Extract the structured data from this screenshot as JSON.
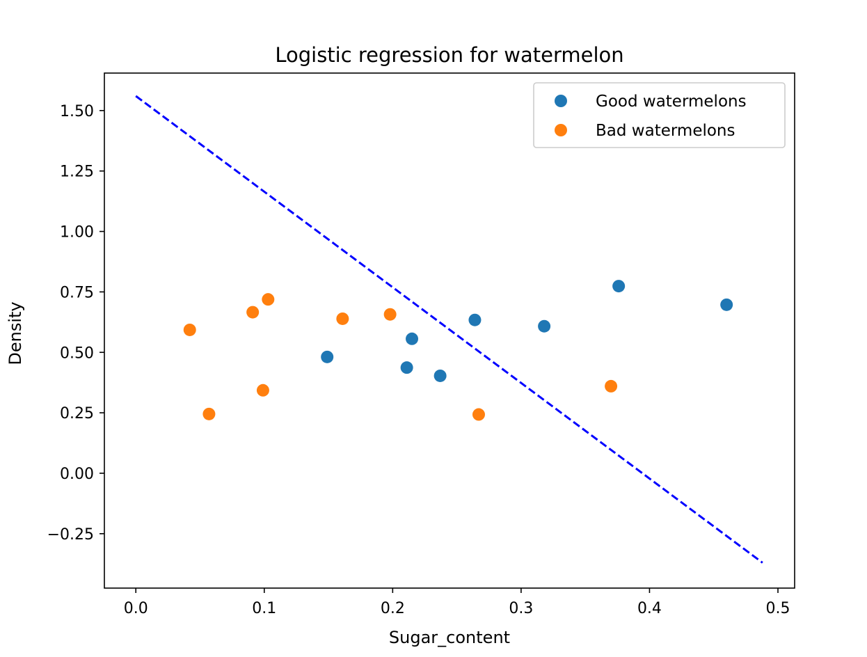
{
  "chart_data": {
    "type": "scatter",
    "title": "Logistic regression for watermelon",
    "xlabel": "Sugar_content",
    "ylabel": "Density",
    "xlim": [
      -0.0245,
      0.513
    ],
    "ylim": [
      -0.475,
      1.655
    ],
    "xticks": [
      0.0,
      0.1,
      0.2,
      0.3,
      0.4,
      0.5
    ],
    "xtick_labels": [
      "0.0",
      "0.1",
      "0.2",
      "0.3",
      "0.4",
      "0.5"
    ],
    "yticks": [
      -0.25,
      0.0,
      0.25,
      0.5,
      0.75,
      1.0,
      1.25,
      1.5
    ],
    "ytick_labels": [
      "−0.25",
      "0.00",
      "0.25",
      "0.50",
      "0.75",
      "1.00",
      "1.25",
      "1.50"
    ],
    "grid": false,
    "legend_position": "top-right",
    "series": [
      {
        "name": "Good watermelons",
        "color": "#1f77b4",
        "points": [
          {
            "x": 0.46,
            "y": 0.697
          },
          {
            "x": 0.376,
            "y": 0.774
          },
          {
            "x": 0.264,
            "y": 0.634
          },
          {
            "x": 0.318,
            "y": 0.608
          },
          {
            "x": 0.215,
            "y": 0.556
          },
          {
            "x": 0.237,
            "y": 0.403
          },
          {
            "x": 0.149,
            "y": 0.481
          },
          {
            "x": 0.211,
            "y": 0.437
          }
        ]
      },
      {
        "name": "Bad watermelons",
        "color": "#ff7f0e",
        "points": [
          {
            "x": 0.091,
            "y": 0.666
          },
          {
            "x": 0.267,
            "y": 0.243
          },
          {
            "x": 0.057,
            "y": 0.245
          },
          {
            "x": 0.099,
            "y": 0.343
          },
          {
            "x": 0.161,
            "y": 0.639
          },
          {
            "x": 0.198,
            "y": 0.657
          },
          {
            "x": 0.37,
            "y": 0.36
          },
          {
            "x": 0.042,
            "y": 0.593
          },
          {
            "x": 0.103,
            "y": 0.719
          }
        ]
      }
    ],
    "decision_boundary": {
      "style": "dashed",
      "color": "#0000ff",
      "x": [
        0.0,
        0.488
      ],
      "y": [
        1.56,
        -0.37
      ]
    }
  }
}
